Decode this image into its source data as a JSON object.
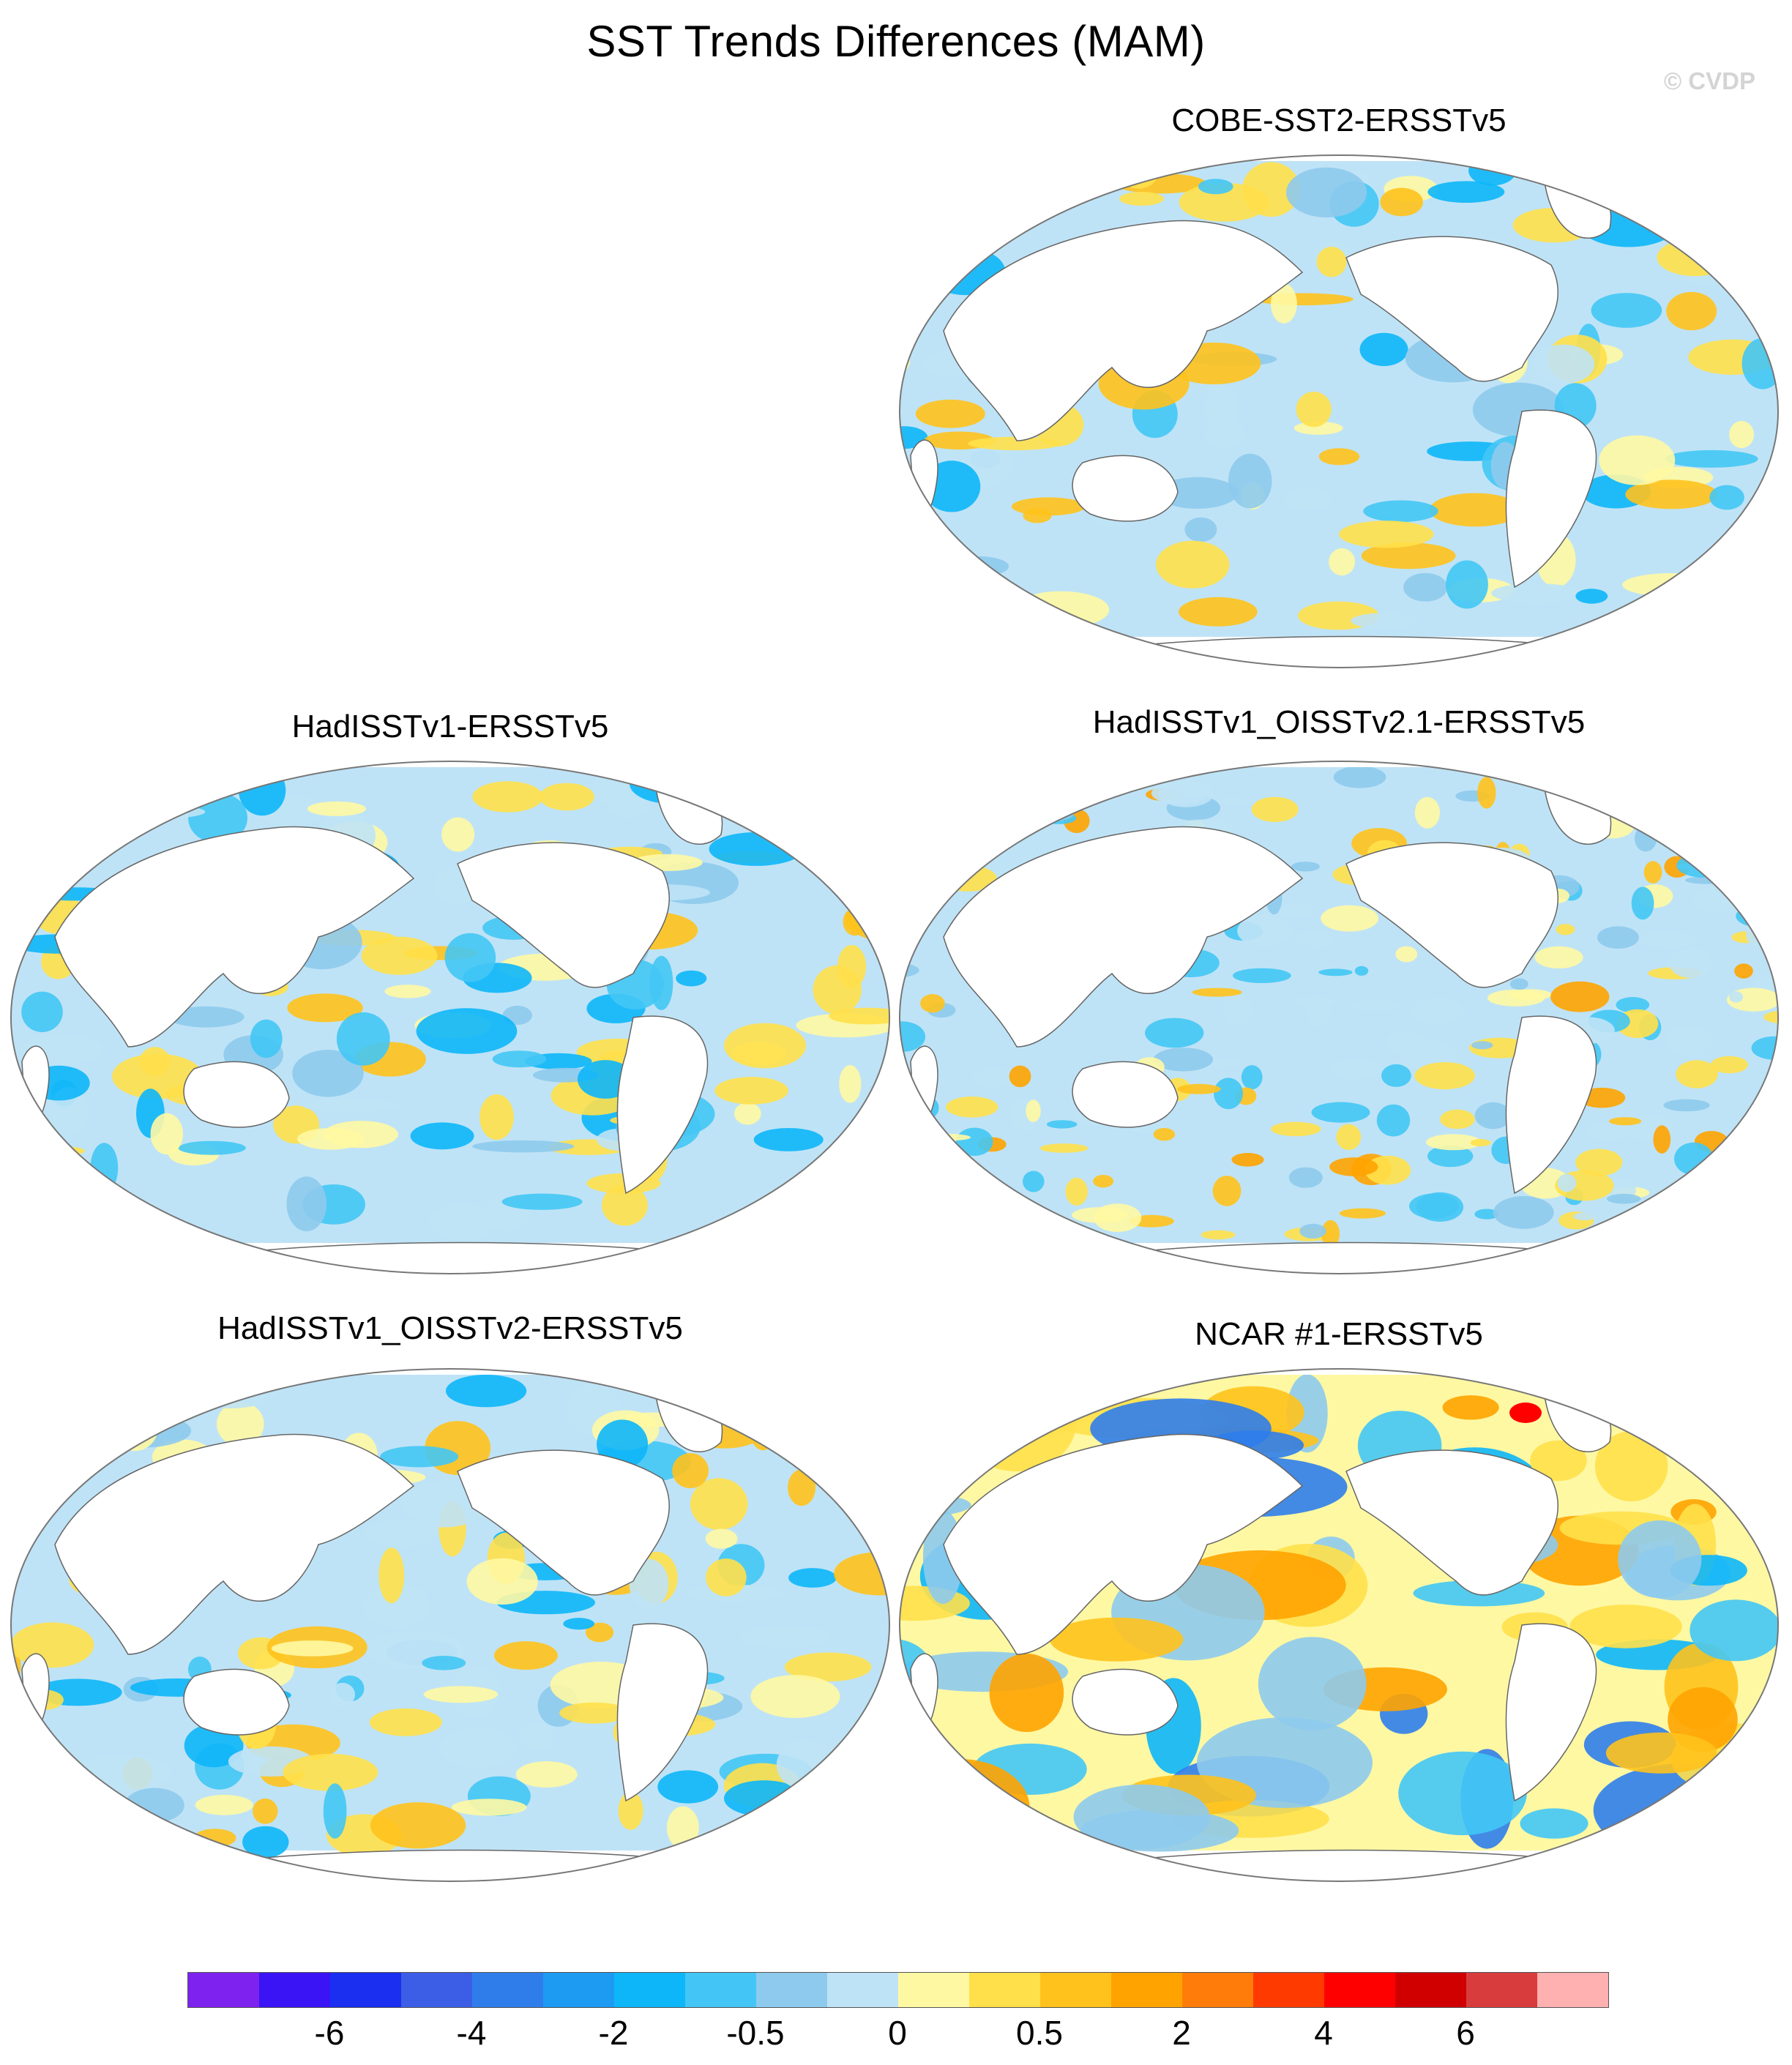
{
  "title": "SST Trends Differences (MAM)",
  "credit": "© CVDP",
  "panels": [
    {
      "id": "p1",
      "title": "COBE-SST2-ERSSTv5",
      "variant": 0
    },
    {
      "id": "p2",
      "title": "HadISSTv1-ERSSTv5",
      "variant": 1
    },
    {
      "id": "p3",
      "title": "HadISSTv1_OISSTv2.1-ERSSTv5",
      "variant": 2
    },
    {
      "id": "p4",
      "title": "HadISSTv1_OISSTv2-ERSSTv5",
      "variant": 3
    },
    {
      "id": "p5",
      "title": "NCAR #1-ERSSTv5",
      "variant": 4
    }
  ],
  "colorbar": {
    "colors": [
      "#7e22f0",
      "#3a14f5",
      "#1a2ff0",
      "#3c5de6",
      "#2f7deb",
      "#1d9af2",
      "#0db6f9",
      "#43c6f5",
      "#8ecaed",
      "#bfe3f6",
      "#fff8a3",
      "#ffe04a",
      "#ffc21c",
      "#ffa300",
      "#ff7c0a",
      "#ff3a00",
      "#ff0000",
      "#d10000",
      "#d93c3c",
      "#ffb0b0"
    ],
    "labels": [
      "-6",
      "-4",
      "-2",
      "-0.5",
      "0",
      "0.5",
      "2",
      "4",
      "6"
    ]
  }
}
